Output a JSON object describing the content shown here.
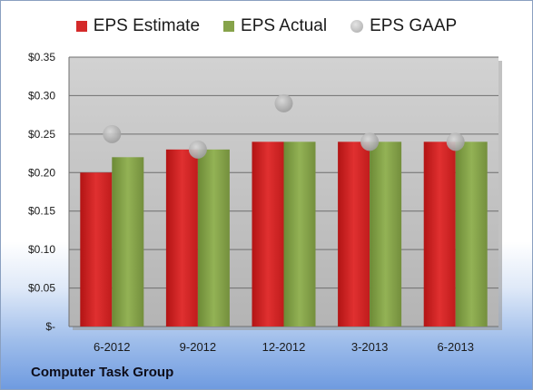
{
  "chart_data": {
    "type": "bar",
    "categories": [
      "6-2012",
      "9-2012",
      "12-2012",
      "3-2013",
      "6-2013"
    ],
    "series": [
      {
        "name": "EPS Estimate",
        "values": [
          0.2,
          0.23,
          0.24,
          0.24,
          0.24
        ],
        "color": "#cc2222",
        "kind": "bar"
      },
      {
        "name": "EPS Actual",
        "values": [
          0.22,
          0.23,
          0.24,
          0.24,
          0.24
        ],
        "color": "#7d9a45",
        "kind": "bar"
      },
      {
        "name": "EPS GAAP",
        "values": [
          0.25,
          0.23,
          0.29,
          0.24,
          0.24
        ],
        "color": "#b5b5b5",
        "kind": "marker"
      }
    ],
    "ylim": [
      0,
      0.35
    ],
    "yticks": [
      0,
      0.05,
      0.1,
      0.15,
      0.2,
      0.25,
      0.3,
      0.35
    ],
    "ytick_labels": [
      "$-",
      "$0.05",
      "$0.10",
      "$0.15",
      "$0.20",
      "$0.25",
      "$0.30",
      "$0.35"
    ],
    "grid": true,
    "legend_position": "top"
  },
  "footer": {
    "company": "Computer Task Group"
  }
}
